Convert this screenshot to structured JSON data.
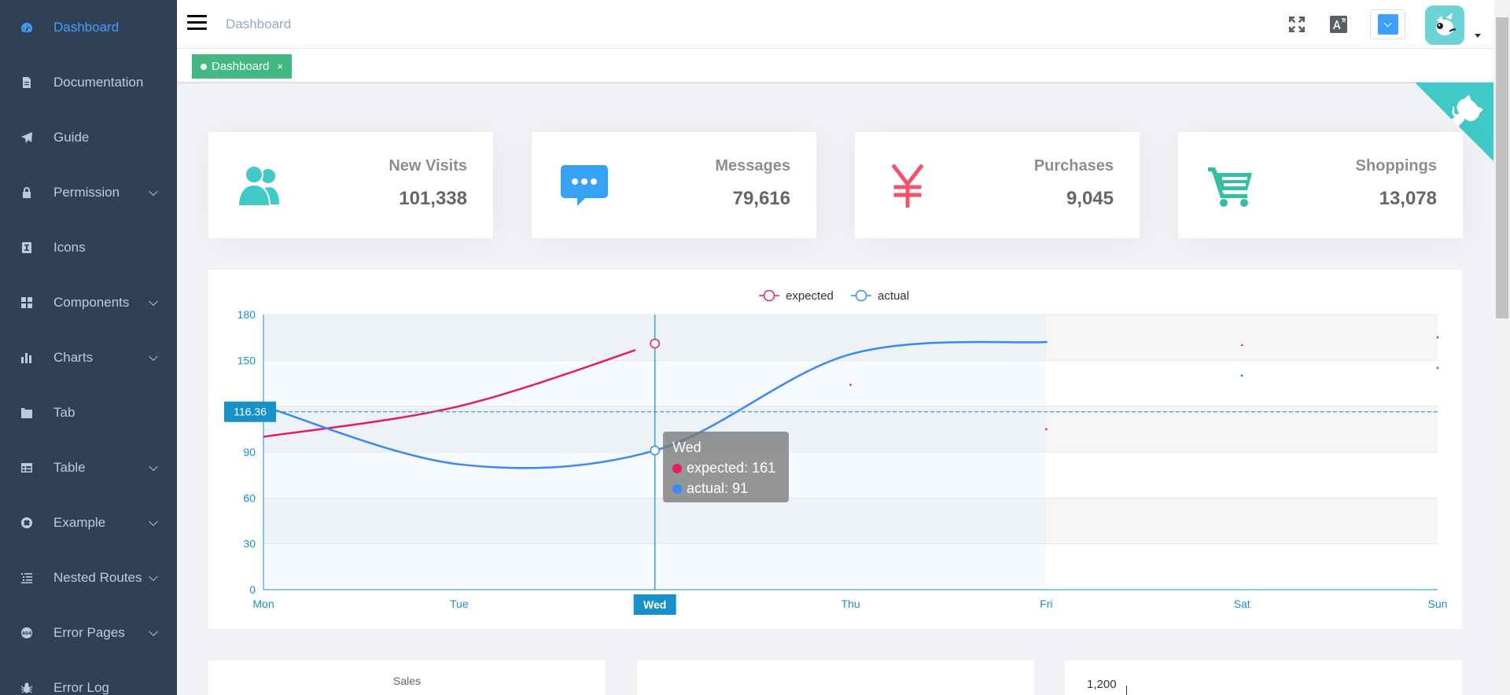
{
  "sidebar": {
    "items": [
      {
        "label": "Dashboard",
        "icon": "dashboard-icon",
        "expandable": false
      },
      {
        "label": "Documentation",
        "icon": "documentation-icon",
        "expandable": false
      },
      {
        "label": "Guide",
        "icon": "guide-icon",
        "expandable": false
      },
      {
        "label": "Permission",
        "icon": "lock-icon",
        "expandable": true
      },
      {
        "label": "Icons",
        "icon": "icons-icon",
        "expandable": false
      },
      {
        "label": "Components",
        "icon": "components-icon",
        "expandable": true
      },
      {
        "label": "Charts",
        "icon": "chart-icon",
        "expandable": true
      },
      {
        "label": "Tab",
        "icon": "tab-icon",
        "expandable": false
      },
      {
        "label": "Table",
        "icon": "table-icon",
        "expandable": true
      },
      {
        "label": "Example",
        "icon": "example-icon",
        "expandable": true
      },
      {
        "label": "Nested Routes",
        "icon": "nested-icon",
        "expandable": true
      },
      {
        "label": "Error Pages",
        "icon": "error-pages-icon",
        "expandable": true
      },
      {
        "label": "Error Log",
        "icon": "bug-icon",
        "expandable": false
      }
    ]
  },
  "navbar": {
    "breadcrumb": "Dashboard"
  },
  "tags": {
    "active_label": "Dashboard",
    "close_glyph": "×"
  },
  "panels": [
    {
      "label": "New Visits",
      "value": "101,338",
      "icon": "peoples-icon",
      "color": "#40c9c6"
    },
    {
      "label": "Messages",
      "value": "79,616",
      "icon": "message-icon",
      "color": "#36a3f7"
    },
    {
      "label": "Purchases",
      "value": "9,045",
      "icon": "money-icon",
      "color": "#f4516c"
    },
    {
      "label": "Shoppings",
      "value": "13,078",
      "icon": "shopping-cart-icon",
      "color": "#34bfa3"
    }
  ],
  "chart_data": {
    "type": "line",
    "categories": [
      "Mon",
      "Tue",
      "Wed",
      "Thu",
      "Fri",
      "Sat",
      "Sun"
    ],
    "series": [
      {
        "name": "expected",
        "color": "#e61c5d",
        "values": [
          100,
          120,
          161,
          134,
          105,
          160,
          165
        ]
      },
      {
        "name": "actual",
        "color": "#3888fa",
        "values": [
          120,
          82,
          91,
          154,
          162,
          140,
          145
        ]
      }
    ],
    "ylim": [
      0,
      180
    ],
    "yticks": [
      0,
      30,
      60,
      90,
      120,
      150,
      180
    ],
    "legend": "top-center",
    "tooltip": {
      "title": "Wed",
      "expected_text": "expected: 161",
      "actual_text": "actual: 91"
    },
    "crosshair": {
      "x_label": "Wed",
      "y_label": "116.36",
      "y_value": 116.36
    }
  },
  "bottom": {
    "sales_title": "Sales",
    "axis_label": "1,200"
  }
}
